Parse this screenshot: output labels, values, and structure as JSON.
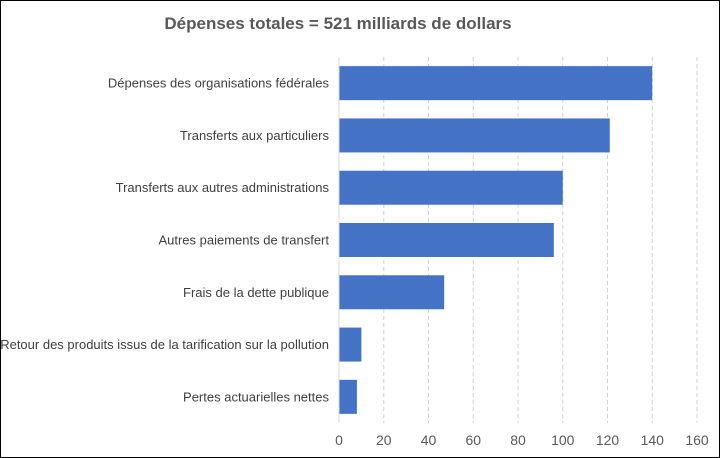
{
  "chart_data": {
    "type": "bar",
    "orientation": "horizontal",
    "title": "Dépenses totales = 521 milliards de dollars",
    "xlabel": "",
    "ylabel": "",
    "categories": [
      "Dépenses des organisations fédérales",
      "Transferts aux particuliers",
      "Transferts aux autres administrations",
      "Autres paiements de transfert",
      "Frais de la dette publique",
      "Retour des produits issus de la tarification sur la pollution",
      "Pertes actuarielles nettes"
    ],
    "values": [
      140,
      121,
      100,
      96,
      47,
      10,
      8
    ],
    "xlim": [
      0,
      160
    ],
    "xticks": [
      0,
      20,
      40,
      60,
      80,
      100,
      120,
      140,
      160
    ],
    "grid": "vertical dashed",
    "legend": "none",
    "bar_color": "#4472C4"
  }
}
